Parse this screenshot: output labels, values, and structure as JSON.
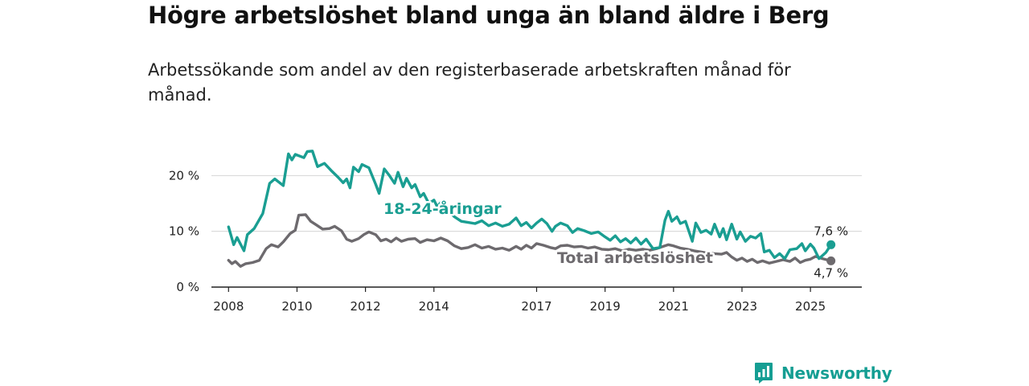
{
  "title": "Högre arbetslöshet bland unga än bland äldre i Berg",
  "subtitle": "Arbetssökande som andel av den registerbaserade arbetskraften månad för månad.",
  "brand": {
    "name": "Newsworthy",
    "color": "#159e93"
  },
  "chart_data": {
    "type": "line",
    "x_ticks": [
      "2008",
      "2010",
      "2012",
      "2014",
      "2017",
      "2019",
      "2021",
      "2023",
      "2025"
    ],
    "y_ticks": [
      "0 %",
      "10 %",
      "20 %"
    ],
    "ylim": [
      0,
      30
    ],
    "xlim": [
      2007.5,
      2026.5
    ],
    "grid": true,
    "series": [
      {
        "name": "18-24-åringar",
        "color": "#1a9e92",
        "end_label": "7,6 %",
        "points": [
          [
            2008.0,
            10.8
          ],
          [
            2008.15,
            7.6
          ],
          [
            2008.25,
            8.9
          ],
          [
            2008.45,
            6.5
          ],
          [
            2008.55,
            9.4
          ],
          [
            2008.75,
            10.5
          ],
          [
            2009.0,
            13.2
          ],
          [
            2009.2,
            18.6
          ],
          [
            2009.35,
            19.4
          ],
          [
            2009.6,
            18.2
          ],
          [
            2009.75,
            23.9
          ],
          [
            2009.85,
            22.8
          ],
          [
            2009.95,
            23.8
          ],
          [
            2010.2,
            23.2
          ],
          [
            2010.3,
            24.3
          ],
          [
            2010.45,
            24.4
          ],
          [
            2010.6,
            21.6
          ],
          [
            2010.8,
            22.2
          ],
          [
            2011.0,
            20.9
          ],
          [
            2011.2,
            19.7
          ],
          [
            2011.35,
            18.7
          ],
          [
            2011.45,
            19.4
          ],
          [
            2011.55,
            17.8
          ],
          [
            2011.65,
            21.5
          ],
          [
            2011.8,
            20.7
          ],
          [
            2011.9,
            22.0
          ],
          [
            2012.1,
            21.4
          ],
          [
            2012.3,
            18.4
          ],
          [
            2012.4,
            16.8
          ],
          [
            2012.55,
            21.2
          ],
          [
            2012.7,
            20.0
          ],
          [
            2012.85,
            18.6
          ],
          [
            2012.95,
            20.6
          ],
          [
            2013.1,
            18.0
          ],
          [
            2013.2,
            19.5
          ],
          [
            2013.35,
            17.8
          ],
          [
            2013.45,
            18.4
          ],
          [
            2013.6,
            16.2
          ],
          [
            2013.7,
            16.8
          ],
          [
            2013.85,
            15.0
          ],
          [
            2014.0,
            15.6
          ],
          [
            2014.1,
            14.4
          ],
          [
            2014.2,
            15.2
          ],
          [
            2014.4,
            13.8
          ],
          [
            2014.6,
            12.6
          ],
          [
            2014.8,
            11.8
          ],
          [
            2015.0,
            11.6
          ],
          [
            2015.2,
            11.4
          ],
          [
            2015.4,
            11.9
          ],
          [
            2015.6,
            11.0
          ],
          [
            2015.8,
            11.5
          ],
          [
            2016.0,
            10.9
          ],
          [
            2016.2,
            11.3
          ],
          [
            2016.4,
            12.4
          ],
          [
            2016.55,
            11.0
          ],
          [
            2016.7,
            11.6
          ],
          [
            2016.85,
            10.6
          ],
          [
            2017.0,
            11.5
          ],
          [
            2017.15,
            12.2
          ],
          [
            2017.3,
            11.4
          ],
          [
            2017.45,
            10.0
          ],
          [
            2017.55,
            10.9
          ],
          [
            2017.7,
            11.5
          ],
          [
            2017.9,
            11.0
          ],
          [
            2018.05,
            9.8
          ],
          [
            2018.2,
            10.5
          ],
          [
            2018.4,
            10.1
          ],
          [
            2018.6,
            9.6
          ],
          [
            2018.8,
            9.9
          ],
          [
            2019.0,
            9.0
          ],
          [
            2019.15,
            8.4
          ],
          [
            2019.3,
            9.2
          ],
          [
            2019.45,
            8.1
          ],
          [
            2019.6,
            8.7
          ],
          [
            2019.75,
            7.9
          ],
          [
            2019.9,
            8.8
          ],
          [
            2020.05,
            7.7
          ],
          [
            2020.2,
            8.6
          ],
          [
            2020.4,
            6.9
          ],
          [
            2020.6,
            7.1
          ],
          [
            2020.75,
            12.0
          ],
          [
            2020.85,
            13.6
          ],
          [
            2020.95,
            11.8
          ],
          [
            2021.1,
            12.6
          ],
          [
            2021.2,
            11.4
          ],
          [
            2021.35,
            11.8
          ],
          [
            2021.55,
            8.2
          ],
          [
            2021.65,
            11.5
          ],
          [
            2021.8,
            9.8
          ],
          [
            2021.95,
            10.2
          ],
          [
            2022.1,
            9.5
          ],
          [
            2022.2,
            11.3
          ],
          [
            2022.35,
            9.0
          ],
          [
            2022.45,
            10.5
          ],
          [
            2022.55,
            8.5
          ],
          [
            2022.7,
            11.3
          ],
          [
            2022.85,
            8.6
          ],
          [
            2022.95,
            9.9
          ],
          [
            2023.1,
            8.2
          ],
          [
            2023.25,
            9.1
          ],
          [
            2023.4,
            8.8
          ],
          [
            2023.55,
            9.6
          ],
          [
            2023.65,
            6.3
          ],
          [
            2023.8,
            6.6
          ],
          [
            2023.95,
            5.3
          ],
          [
            2024.1,
            6.0
          ],
          [
            2024.25,
            5.1
          ],
          [
            2024.4,
            6.7
          ],
          [
            2024.6,
            6.9
          ],
          [
            2024.75,
            7.8
          ],
          [
            2024.85,
            6.5
          ],
          [
            2025.0,
            7.7
          ],
          [
            2025.1,
            7.0
          ],
          [
            2025.25,
            5.1
          ],
          [
            2025.45,
            6.2
          ],
          [
            2025.6,
            7.6
          ]
        ]
      },
      {
        "name": "Total arbetslöshet",
        "color": "#6d6a6e",
        "end_label": "4,7 %",
        "points": [
          [
            2008.0,
            4.8
          ],
          [
            2008.1,
            4.2
          ],
          [
            2008.2,
            4.6
          ],
          [
            2008.35,
            3.7
          ],
          [
            2008.5,
            4.2
          ],
          [
            2008.7,
            4.4
          ],
          [
            2008.9,
            4.8
          ],
          [
            2009.1,
            6.9
          ],
          [
            2009.25,
            7.6
          ],
          [
            2009.45,
            7.2
          ],
          [
            2009.6,
            8.1
          ],
          [
            2009.8,
            9.6
          ],
          [
            2009.95,
            10.2
          ],
          [
            2010.05,
            12.9
          ],
          [
            2010.25,
            13.0
          ],
          [
            2010.4,
            11.8
          ],
          [
            2010.55,
            11.2
          ],
          [
            2010.75,
            10.4
          ],
          [
            2010.95,
            10.5
          ],
          [
            2011.1,
            10.9
          ],
          [
            2011.3,
            10.1
          ],
          [
            2011.45,
            8.6
          ],
          [
            2011.6,
            8.2
          ],
          [
            2011.8,
            8.7
          ],
          [
            2011.95,
            9.4
          ],
          [
            2012.1,
            9.9
          ],
          [
            2012.3,
            9.4
          ],
          [
            2012.45,
            8.3
          ],
          [
            2012.6,
            8.6
          ],
          [
            2012.75,
            8.1
          ],
          [
            2012.9,
            8.8
          ],
          [
            2013.05,
            8.2
          ],
          [
            2013.25,
            8.6
          ],
          [
            2013.45,
            8.7
          ],
          [
            2013.6,
            8.0
          ],
          [
            2013.8,
            8.5
          ],
          [
            2014.0,
            8.3
          ],
          [
            2014.2,
            8.8
          ],
          [
            2014.4,
            8.3
          ],
          [
            2014.6,
            7.4
          ],
          [
            2014.8,
            6.9
          ],
          [
            2015.0,
            7.1
          ],
          [
            2015.2,
            7.6
          ],
          [
            2015.4,
            7.0
          ],
          [
            2015.6,
            7.3
          ],
          [
            2015.8,
            6.8
          ],
          [
            2016.0,
            7.0
          ],
          [
            2016.2,
            6.6
          ],
          [
            2016.4,
            7.3
          ],
          [
            2016.55,
            6.8
          ],
          [
            2016.7,
            7.5
          ],
          [
            2016.85,
            7.0
          ],
          [
            2017.0,
            7.8
          ],
          [
            2017.2,
            7.5
          ],
          [
            2017.4,
            7.1
          ],
          [
            2017.55,
            6.9
          ],
          [
            2017.7,
            7.4
          ],
          [
            2017.9,
            7.5
          ],
          [
            2018.1,
            7.2
          ],
          [
            2018.3,
            7.3
          ],
          [
            2018.5,
            7.0
          ],
          [
            2018.7,
            7.2
          ],
          [
            2018.9,
            6.8
          ],
          [
            2019.1,
            6.7
          ],
          [
            2019.3,
            6.9
          ],
          [
            2019.5,
            6.5
          ],
          [
            2019.7,
            6.8
          ],
          [
            2019.9,
            6.6
          ],
          [
            2020.1,
            6.8
          ],
          [
            2020.3,
            6.6
          ],
          [
            2020.5,
            6.9
          ],
          [
            2020.7,
            7.3
          ],
          [
            2020.85,
            7.6
          ],
          [
            2021.0,
            7.4
          ],
          [
            2021.2,
            7.0
          ],
          [
            2021.4,
            6.8
          ],
          [
            2021.6,
            6.5
          ],
          [
            2021.8,
            6.3
          ],
          [
            2022.0,
            6.1
          ],
          [
            2022.2,
            6.0
          ],
          [
            2022.4,
            5.9
          ],
          [
            2022.55,
            6.2
          ],
          [
            2022.7,
            5.4
          ],
          [
            2022.85,
            4.8
          ],
          [
            2023.0,
            5.2
          ],
          [
            2023.15,
            4.6
          ],
          [
            2023.3,
            5.0
          ],
          [
            2023.45,
            4.4
          ],
          [
            2023.6,
            4.7
          ],
          [
            2023.8,
            4.3
          ],
          [
            2024.0,
            4.6
          ],
          [
            2024.2,
            4.9
          ],
          [
            2024.4,
            4.6
          ],
          [
            2024.55,
            5.2
          ],
          [
            2024.7,
            4.4
          ],
          [
            2024.85,
            4.8
          ],
          [
            2025.0,
            5.0
          ],
          [
            2025.15,
            5.5
          ],
          [
            2025.35,
            5.1
          ],
          [
            2025.6,
            4.7
          ]
        ]
      }
    ]
  }
}
